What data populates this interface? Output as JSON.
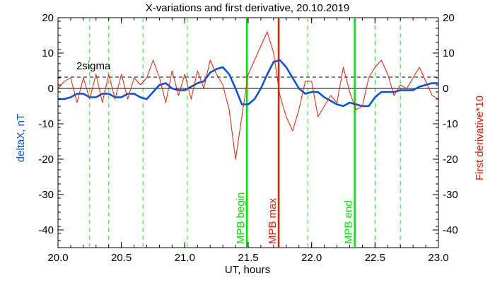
{
  "chart_data": {
    "type": "line",
    "title": "X-variations and first derivative, 20.10.2019",
    "xlabel": "UT, hours",
    "ylabel_left": "deltaX, nT",
    "ylabel_right": "First derivative*10",
    "xlim": [
      20.0,
      23.0
    ],
    "ylim": [
      -45,
      20
    ],
    "x_ticks": [
      "20.0",
      "20.5",
      "21.0",
      "21.5",
      "22.0",
      "22.5",
      "23.0"
    ],
    "y_ticks_left": [
      "20",
      "10",
      "0",
      "-10",
      "-20",
      "-30",
      "-40"
    ],
    "y_ticks_right": [
      "20",
      "10",
      "0",
      "-10",
      "-20",
      "-30",
      "-40"
    ],
    "sigma_label": "2sigma",
    "sigma_level": 3.2,
    "colors": {
      "deltaX": "#0050e0",
      "derivative": "#e02000",
      "mpb_begin_end": "#00e000",
      "mpb_max": "#e02000",
      "dashed_markers": "#22dd22",
      "sigma_line": "#000000"
    },
    "series": [
      {
        "name": "deltaX, nT",
        "color": "#0050e0",
        "x": [
          20.0,
          20.05,
          20.1,
          20.15,
          20.2,
          20.25,
          20.3,
          20.35,
          20.4,
          20.45,
          20.5,
          20.55,
          20.6,
          20.65,
          20.7,
          20.75,
          20.8,
          20.85,
          20.9,
          20.95,
          21.0,
          21.05,
          21.1,
          21.15,
          21.2,
          21.25,
          21.3,
          21.35,
          21.4,
          21.45,
          21.5,
          21.55,
          21.6,
          21.65,
          21.7,
          21.75,
          21.8,
          21.85,
          21.9,
          21.95,
          22.0,
          22.05,
          22.1,
          22.15,
          22.2,
          22.25,
          22.3,
          22.35,
          22.4,
          22.45,
          22.5,
          22.55,
          22.6,
          22.65,
          22.7,
          22.75,
          22.8,
          22.85,
          22.9,
          22.95,
          23.0
        ],
        "y": [
          -3,
          -3,
          -2.5,
          -1.5,
          -1.5,
          -2.5,
          -2.5,
          -1.5,
          -1.5,
          -2.5,
          -2.5,
          -1.5,
          -1.5,
          -2.5,
          -3,
          -1,
          1,
          1.5,
          0,
          -0.5,
          -0.5,
          0.5,
          1.5,
          2,
          4.5,
          5.5,
          6,
          4,
          0,
          -4.5,
          -4.5,
          -3,
          0,
          4,
          7.5,
          8,
          6,
          3,
          0,
          -1.5,
          -1,
          -1,
          -2.5,
          -3.5,
          -4.5,
          -5,
          -4,
          -4.5,
          -5,
          -5,
          -2.5,
          -1,
          -1,
          -1,
          -0.5,
          -0.5,
          -0.5,
          0.5,
          1,
          1.5,
          1.5
        ]
      },
      {
        "name": "First derivative*10",
        "color": "#e02000",
        "x": [
          20.0,
          20.05,
          20.1,
          20.15,
          20.2,
          20.25,
          20.3,
          20.35,
          20.4,
          20.45,
          20.5,
          20.55,
          20.6,
          20.65,
          20.7,
          20.75,
          20.8,
          20.85,
          20.9,
          20.95,
          21.0,
          21.05,
          21.1,
          21.15,
          21.2,
          21.25,
          21.3,
          21.35,
          21.4,
          21.45,
          21.5,
          21.55,
          21.6,
          21.65,
          21.7,
          21.75,
          21.8,
          21.85,
          21.9,
          21.95,
          22.0,
          22.05,
          22.1,
          22.15,
          22.2,
          22.25,
          22.3,
          22.35,
          22.4,
          22.45,
          22.5,
          22.55,
          22.6,
          22.65,
          22.7,
          22.75,
          22.8,
          22.85,
          22.9,
          22.95,
          23.0
        ],
        "y": [
          0,
          2,
          3,
          -4,
          3,
          -3,
          4,
          -4,
          4,
          -3,
          4,
          -3,
          3,
          1,
          3,
          8,
          3,
          -4,
          5,
          -2,
          4,
          -3,
          5,
          0,
          8,
          4,
          1,
          -6,
          -20,
          -8,
          4,
          8,
          12,
          16,
          10,
          -2,
          -8,
          -12,
          -6,
          2,
          2,
          -8,
          -5,
          -2,
          -4,
          6,
          -1,
          -6,
          -5,
          3,
          6,
          8,
          4,
          -2,
          1,
          0,
          3,
          6,
          2,
          -2,
          -3
        ]
      }
    ],
    "vertical_markers": {
      "dashed": [
        20.25,
        20.4,
        20.67,
        21.02,
        21.97,
        22.5,
        22.7
      ],
      "solid": [
        {
          "x": 21.49,
          "label": "MPB begin",
          "color": "#00e000"
        },
        {
          "x": 21.74,
          "label": "MPB max",
          "color": "#e02000"
        },
        {
          "x": 22.34,
          "label": "MPB end",
          "color": "#00e000"
        }
      ]
    },
    "grid": false,
    "legend": "none"
  }
}
